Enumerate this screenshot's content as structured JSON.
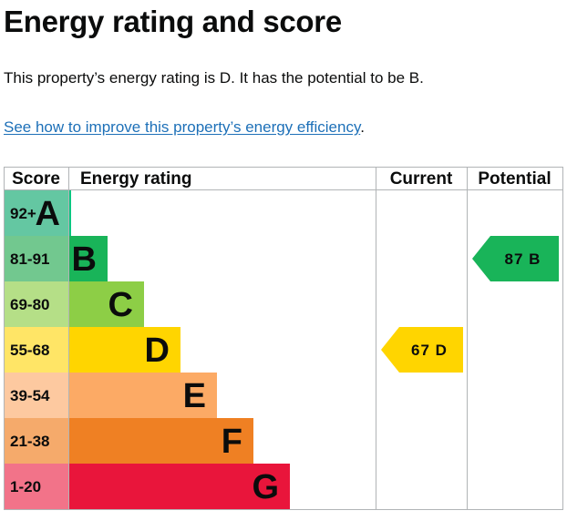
{
  "page": {
    "title": "Energy rating and score",
    "summary": "This property’s energy rating is D. It has the potential to be B.",
    "improve_link": "See how to improve this property’s energy efficiency",
    "improve_suffix": "."
  },
  "chart_data": {
    "type": "bar",
    "title": "",
    "columns": [
      "Score",
      "Energy rating",
      "Current",
      "Potential"
    ],
    "bands": [
      {
        "letter": "A",
        "score": "92+",
        "color": "#00c781",
        "score_color": "#64c7a2",
        "letter_position": "in-bar"
      },
      {
        "letter": "B",
        "score": "81-91",
        "color": "#19b459",
        "score_color": "#72c88f",
        "letter_position": "in-bar"
      },
      {
        "letter": "C",
        "score": "69-80",
        "color": "#8dce46",
        "score_color": "#b5df87",
        "letter_position": "in-bar"
      },
      {
        "letter": "D",
        "score": "55-68",
        "color": "#ffd500",
        "score_color": "#ffe566",
        "letter_position": "in-bar"
      },
      {
        "letter": "E",
        "score": "39-54",
        "color": "#fcaa65",
        "score_color": "#fdc9a0",
        "letter_position": "in-bar"
      },
      {
        "letter": "F",
        "score": "21-38",
        "color": "#ef8023",
        "score_color": "#f5aa6b",
        "letter_position": "in-bar"
      },
      {
        "letter": "G",
        "score": "1-20",
        "color": "#e9153b",
        "score_color": "#f27389",
        "letter_position": "in-bar"
      }
    ],
    "current": {
      "value": 67,
      "band": "D",
      "label": "67 D"
    },
    "potential": {
      "value": 87,
      "band": "B",
      "label": "87 B"
    },
    "colors": {
      "grid": "#b1b4b6",
      "text": "#0b0c0c"
    }
  }
}
